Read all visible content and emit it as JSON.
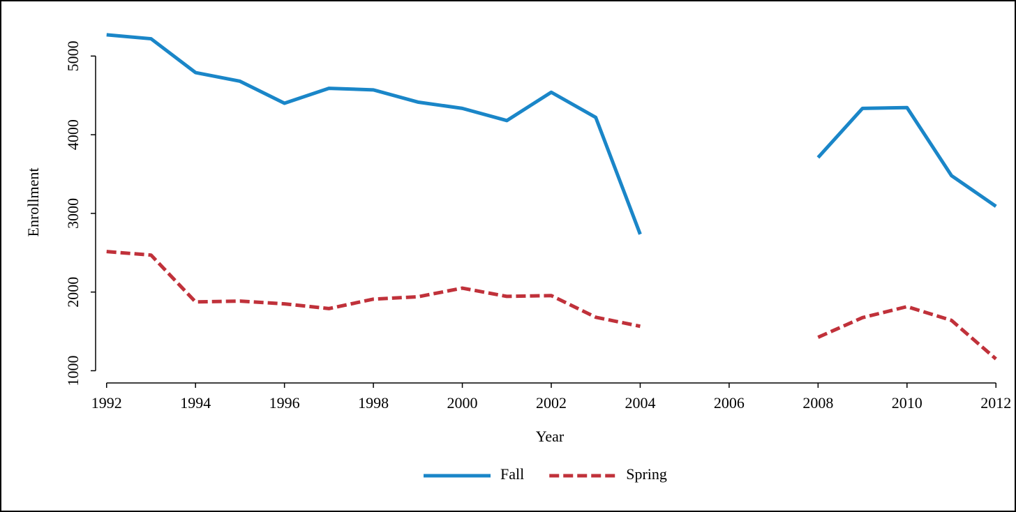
{
  "chart_data": {
    "type": "line",
    "x_label": "Year",
    "y_label": "Enrollment",
    "x": [
      1992,
      1993,
      1994,
      1995,
      1996,
      1997,
      1998,
      1999,
      2000,
      2001,
      2002,
      2003,
      2004,
      2005,
      2006,
      2007,
      2008,
      2009,
      2010,
      2011,
      2012
    ],
    "series": [
      {
        "name": "Fall",
        "color": "#1a86c8",
        "dash": false,
        "values": [
          5270,
          5220,
          4790,
          4680,
          4400,
          4590,
          4570,
          4415,
          4335,
          4180,
          4540,
          4220,
          2735,
          null,
          null,
          null,
          3710,
          4335,
          4345,
          3480,
          3090
        ]
      },
      {
        "name": "Spring",
        "color": "#c0313a",
        "dash": true,
        "values": [
          2515,
          2470,
          1875,
          1885,
          1850,
          1790,
          1910,
          1940,
          2050,
          1945,
          1955,
          1680,
          1565,
          null,
          null,
          null,
          1425,
          1675,
          1815,
          1640,
          1150
        ]
      }
    ],
    "xlim": [
      1991.8,
      2012.2
    ],
    "ylim": [
      880,
      5420
    ],
    "xticks": [
      1992,
      1994,
      1996,
      1998,
      2000,
      2002,
      2004,
      2006,
      2008,
      2010,
      2012
    ],
    "yticks": [
      1000,
      2000,
      3000,
      4000,
      5000
    ],
    "grid": false,
    "legend": "bottom"
  }
}
